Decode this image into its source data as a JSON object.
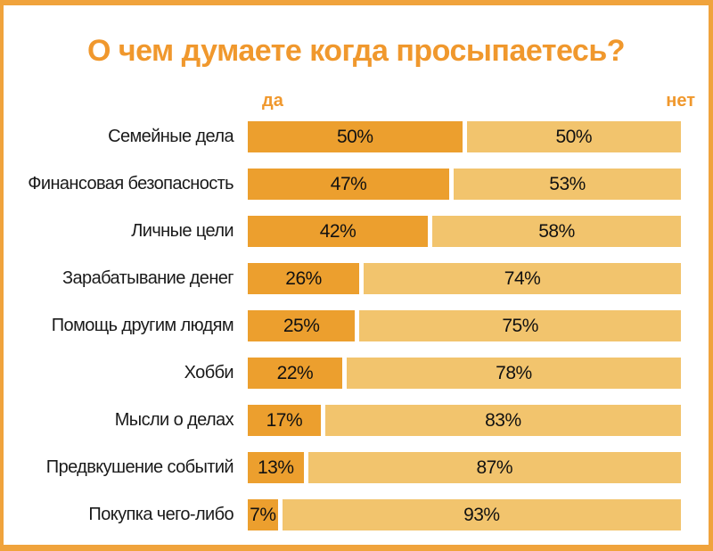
{
  "title": "О чем думаете когда просыпаетесь?",
  "legend": {
    "yes_label": "да",
    "no_label": "нет"
  },
  "colors": {
    "yes_segment": "#EC9F2E",
    "no_segment": "#F2C46D",
    "frame": "#F0A33C",
    "title_text": "#F0982D",
    "value_text": "#111111",
    "category_text": "#1a1a1a",
    "background": "#ffffff"
  },
  "chart_data": {
    "type": "bar",
    "orientation": "horizontal-stacked",
    "title": "О чем думаете когда просыпаетесь?",
    "xlabel": "",
    "ylabel": "",
    "xlim": [
      0,
      100
    ],
    "grid": false,
    "legend_position": "top",
    "value_suffix": "%",
    "categories": [
      "Семейные дела",
      "Финансовая безопасность",
      "Личные цели",
      "Зарабатывание денег",
      "Помощь другим людям",
      "Хобби",
      "Мысли о делах",
      "Предвкушение событий",
      "Покупка чего-либо"
    ],
    "series": [
      {
        "name": "да",
        "values": [
          50,
          47,
          42,
          26,
          25,
          22,
          17,
          13,
          7
        ]
      },
      {
        "name": "нет",
        "values": [
          50,
          53,
          58,
          74,
          75,
          78,
          83,
          87,
          93
        ]
      }
    ]
  }
}
